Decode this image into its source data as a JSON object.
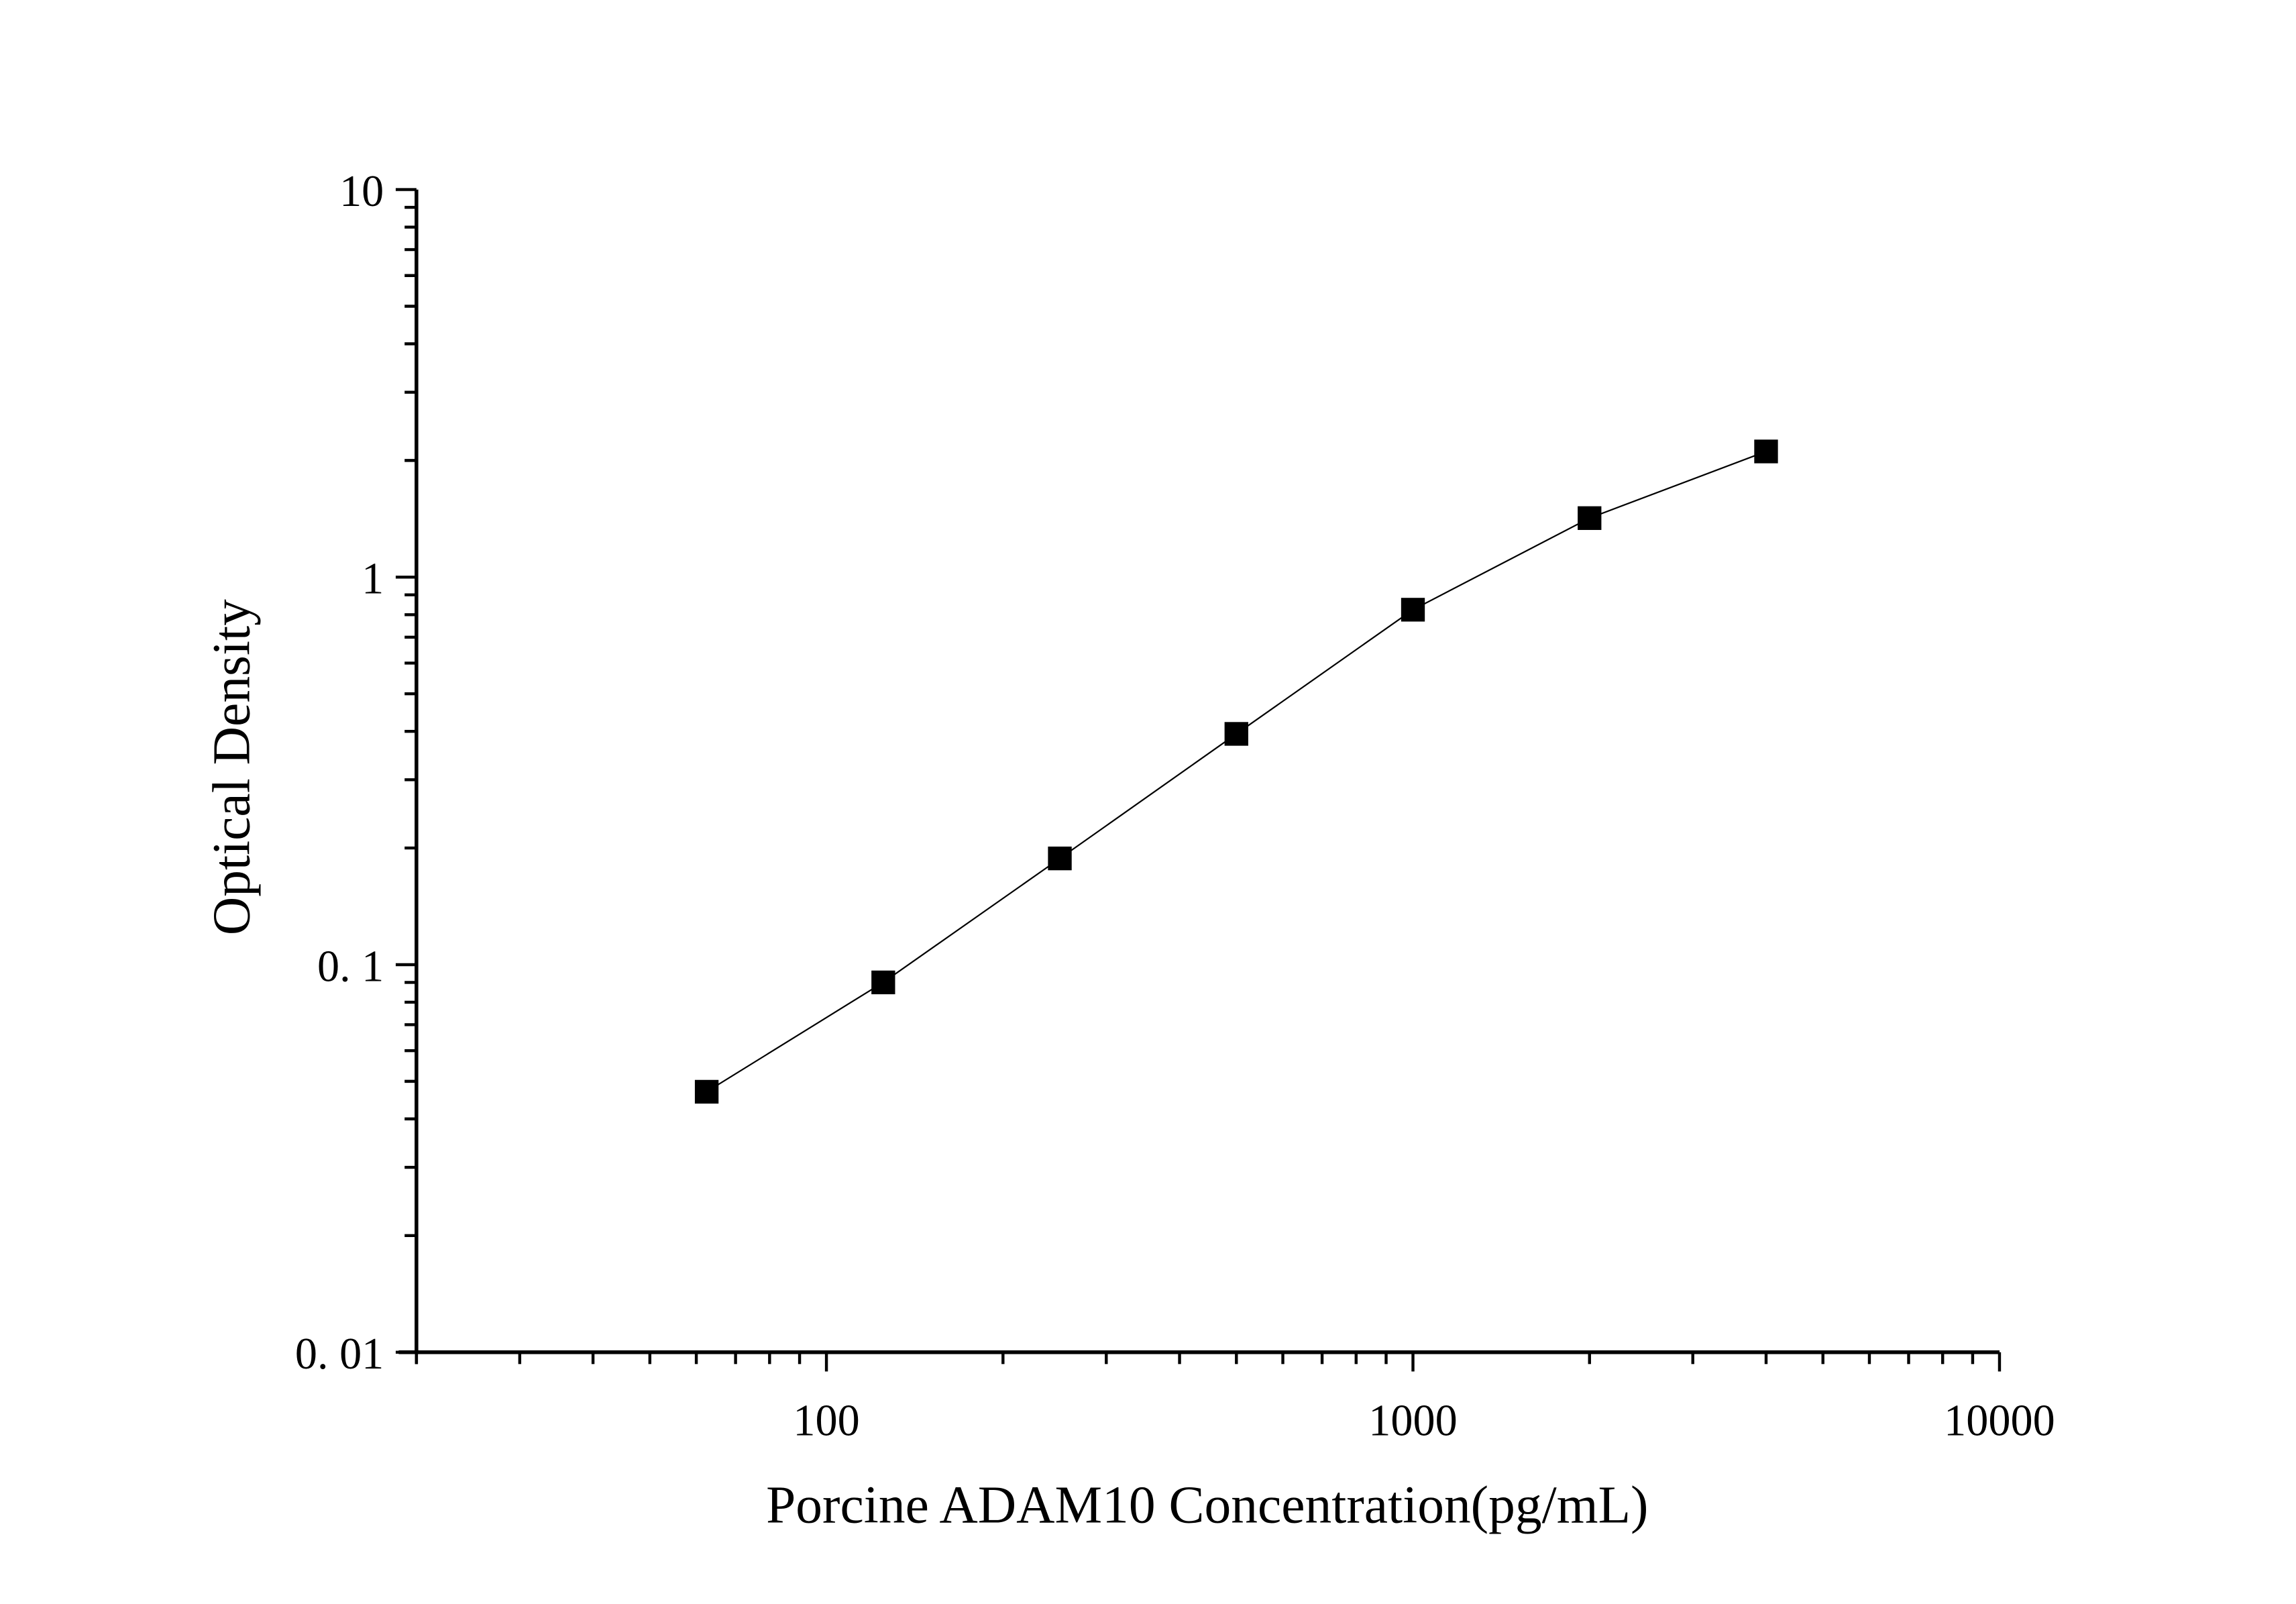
{
  "chart_data": {
    "type": "scatter",
    "title": "",
    "xlabel": "Porcine ADAM10 Concentration(pg/mL)",
    "ylabel": "Optical Density",
    "xscale": "log",
    "yscale": "log",
    "xlim": [
      20,
      10000
    ],
    "ylim": [
      0.01,
      10
    ],
    "x_ticks": [
      {
        "value": 100,
        "label": "100"
      },
      {
        "value": 1000,
        "label": "1000"
      },
      {
        "value": 10000,
        "label": "10000"
      }
    ],
    "y_ticks": [
      {
        "value": 0.01,
        "label": "0. 01"
      },
      {
        "value": 0.1,
        "label": "0. 1"
      },
      {
        "value": 1,
        "label": "1"
      },
      {
        "value": 10,
        "label": "10"
      }
    ],
    "grid": false,
    "marker": "square",
    "connected": true,
    "color": "#000000",
    "x": [
      62.5,
      125,
      250,
      500,
      1000,
      2000,
      4000
    ],
    "y": [
      0.047,
      0.09,
      0.188,
      0.394,
      0.824,
      1.42,
      2.11
    ]
  }
}
